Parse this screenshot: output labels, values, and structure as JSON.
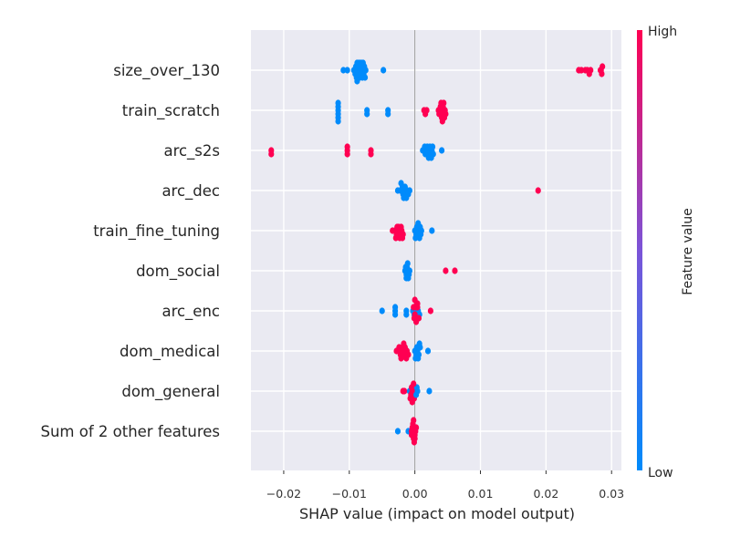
{
  "chart_data": {
    "type": "scatter",
    "subtype": "shap-beeswarm",
    "xlabel": "SHAP value (impact on model output)",
    "xlim": [
      -0.025,
      0.0315
    ],
    "xticks": [
      -0.02,
      -0.01,
      0.0,
      0.01,
      0.02,
      0.03
    ],
    "xtick_labels": [
      "−0.02",
      "−0.01",
      "0.00",
      "0.01",
      "0.02",
      "0.03"
    ],
    "grid": true,
    "colorbar": {
      "label": "Feature value",
      "high_label": "High",
      "low_label": "Low",
      "low_color": "#008bfb",
      "high_color": "#ff0052"
    },
    "features": [
      {
        "name": "size_over_130",
        "points": [
          {
            "x": -0.0093,
            "v": 0
          },
          {
            "x": -0.0092,
            "v": 0
          },
          {
            "x": -0.0091,
            "v": 0
          },
          {
            "x": -0.009,
            "v": 0
          },
          {
            "x": -0.0089,
            "v": 0
          },
          {
            "x": -0.0088,
            "v": 0
          },
          {
            "x": -0.0087,
            "v": 0
          },
          {
            "x": -0.0086,
            "v": 0
          },
          {
            "x": -0.0085,
            "v": 0
          },
          {
            "x": -0.0084,
            "v": 0
          },
          {
            "x": -0.0083,
            "v": 0
          },
          {
            "x": -0.0082,
            "v": 0
          },
          {
            "x": -0.0081,
            "v": 0
          },
          {
            "x": -0.008,
            "v": 0
          },
          {
            "x": -0.0079,
            "v": 0
          },
          {
            "x": -0.0078,
            "v": 0
          },
          {
            "x": -0.0077,
            "v": 0
          },
          {
            "x": -0.0076,
            "v": 0
          },
          {
            "x": -0.0075,
            "v": 0
          },
          {
            "x": -0.0088,
            "v": 0
          },
          {
            "x": -0.0085,
            "v": 0
          },
          {
            "x": -0.0082,
            "v": 0
          },
          {
            "x": -0.0079,
            "v": 0
          },
          {
            "x": -0.0109,
            "v": 0
          },
          {
            "x": -0.0103,
            "v": 0
          },
          {
            "x": -0.0048,
            "v": 0
          },
          {
            "x": 0.025,
            "v": 1
          },
          {
            "x": 0.0254,
            "v": 1
          },
          {
            "x": 0.026,
            "v": 1
          },
          {
            "x": 0.0263,
            "v": 1
          },
          {
            "x": 0.0266,
            "v": 1
          },
          {
            "x": 0.0268,
            "v": 1
          },
          {
            "x": 0.0283,
            "v": 1
          },
          {
            "x": 0.0284,
            "v": 1
          },
          {
            "x": 0.0285,
            "v": 1
          },
          {
            "x": 0.0286,
            "v": 1
          }
        ]
      },
      {
        "name": "train_scratch",
        "points": [
          {
            "x": -0.0117,
            "v": 0
          },
          {
            "x": -0.0117,
            "v": 0
          },
          {
            "x": -0.0117,
            "v": 0
          },
          {
            "x": -0.0117,
            "v": 0
          },
          {
            "x": -0.0117,
            "v": 0
          },
          {
            "x": -0.0117,
            "v": 0
          },
          {
            "x": -0.0073,
            "v": 0
          },
          {
            "x": -0.0073,
            "v": 0
          },
          {
            "x": -0.0041,
            "v": 0
          },
          {
            "x": -0.0041,
            "v": 0
          },
          {
            "x": 0.0014,
            "v": 1
          },
          {
            "x": 0.0016,
            "v": 1
          },
          {
            "x": 0.0018,
            "v": 1
          },
          {
            "x": 0.0036,
            "v": 1
          },
          {
            "x": 0.0038,
            "v": 1
          },
          {
            "x": 0.004,
            "v": 1
          },
          {
            "x": 0.0042,
            "v": 1
          },
          {
            "x": 0.0044,
            "v": 1
          },
          {
            "x": 0.0046,
            "v": 1
          },
          {
            "x": 0.0039,
            "v": 1
          },
          {
            "x": 0.0043,
            "v": 1
          },
          {
            "x": 0.0037,
            "v": 1
          },
          {
            "x": 0.0045,
            "v": 1
          },
          {
            "x": 0.0041,
            "v": 1
          },
          {
            "x": 0.0047,
            "v": 1
          },
          {
            "x": 0.004,
            "v": 1
          },
          {
            "x": 0.0044,
            "v": 1
          },
          {
            "x": 0.0042,
            "v": 1
          }
        ]
      },
      {
        "name": "arc_s2s",
        "points": [
          {
            "x": -0.0219,
            "v": 1
          },
          {
            "x": -0.0219,
            "v": 1
          },
          {
            "x": -0.0103,
            "v": 1
          },
          {
            "x": -0.0103,
            "v": 1
          },
          {
            "x": -0.0103,
            "v": 1
          },
          {
            "x": -0.0067,
            "v": 1
          },
          {
            "x": -0.0067,
            "v": 1
          },
          {
            "x": 0.0012,
            "v": 0
          },
          {
            "x": 0.0014,
            "v": 0
          },
          {
            "x": 0.0016,
            "v": 0
          },
          {
            "x": 0.0018,
            "v": 0
          },
          {
            "x": 0.002,
            "v": 0
          },
          {
            "x": 0.0022,
            "v": 0
          },
          {
            "x": 0.0024,
            "v": 0
          },
          {
            "x": 0.0026,
            "v": 0
          },
          {
            "x": 0.0028,
            "v": 0
          },
          {
            "x": 0.0019,
            "v": 0
          },
          {
            "x": 0.0023,
            "v": 0
          },
          {
            "x": 0.0027,
            "v": 0
          },
          {
            "x": 0.0015,
            "v": 0
          },
          {
            "x": 0.0021,
            "v": 0
          },
          {
            "x": 0.0025,
            "v": 0
          },
          {
            "x": 0.0041,
            "v": 0
          }
        ]
      },
      {
        "name": "arc_dec",
        "points": [
          {
            "x": -0.0026,
            "v": 0
          },
          {
            "x": -0.0022,
            "v": 0
          },
          {
            "x": -0.002,
            "v": 0
          },
          {
            "x": -0.0018,
            "v": 0
          },
          {
            "x": -0.0016,
            "v": 0
          },
          {
            "x": -0.0014,
            "v": 0
          },
          {
            "x": -0.0012,
            "v": 0
          },
          {
            "x": -0.001,
            "v": 0
          },
          {
            "x": -0.0008,
            "v": 0
          },
          {
            "x": -0.0019,
            "v": 0
          },
          {
            "x": -0.0017,
            "v": 0
          },
          {
            "x": -0.0015,
            "v": 0
          },
          {
            "x": -0.0021,
            "v": 0
          },
          {
            "x": -0.0013,
            "v": 0
          },
          {
            "x": 0.0188,
            "v": 1
          }
        ]
      },
      {
        "name": "train_fine_tuning",
        "points": [
          {
            "x": -0.0034,
            "v": 1
          },
          {
            "x": -0.003,
            "v": 1
          },
          {
            "x": -0.0026,
            "v": 1
          },
          {
            "x": -0.0024,
            "v": 1
          },
          {
            "x": -0.0022,
            "v": 1
          },
          {
            "x": -0.002,
            "v": 1
          },
          {
            "x": -0.0018,
            "v": 1
          },
          {
            "x": -0.0028,
            "v": 1
          },
          {
            "x": -0.0025,
            "v": 1
          },
          {
            "x": -0.0021,
            "v": 1
          },
          {
            "x": -0.0027,
            "v": 1
          },
          {
            "x": -0.0023,
            "v": 1
          },
          {
            "x": -0.0019,
            "v": 1
          },
          {
            "x": -0.0029,
            "v": 1
          },
          {
            "x": 0.0,
            "v": 0
          },
          {
            "x": 0.0002,
            "v": 0
          },
          {
            "x": 0.0004,
            "v": 0
          },
          {
            "x": 0.0006,
            "v": 0
          },
          {
            "x": 0.0008,
            "v": 0
          },
          {
            "x": 0.001,
            "v": 0
          },
          {
            "x": 0.0003,
            "v": 0
          },
          {
            "x": 0.0007,
            "v": 0
          },
          {
            "x": 0.0005,
            "v": 0
          },
          {
            "x": 0.0009,
            "v": 0
          },
          {
            "x": 0.0001,
            "v": 0
          },
          {
            "x": 0.0026,
            "v": 0
          }
        ]
      },
      {
        "name": "dom_social",
        "points": [
          {
            "x": -0.0015,
            "v": 0
          },
          {
            "x": -0.0013,
            "v": 0
          },
          {
            "x": -0.0011,
            "v": 0
          },
          {
            "x": -0.0009,
            "v": 0
          },
          {
            "x": -0.0012,
            "v": 0
          },
          {
            "x": -0.001,
            "v": 0
          },
          {
            "x": -0.0014,
            "v": 0
          },
          {
            "x": -0.0008,
            "v": 0
          },
          {
            "x": -0.0011,
            "v": 0
          },
          {
            "x": -0.0013,
            "v": 0
          },
          {
            "x": 0.0047,
            "v": 1
          },
          {
            "x": 0.0061,
            "v": 1
          }
        ]
      },
      {
        "name": "arc_enc",
        "points": [
          {
            "x": -0.005,
            "v": 0
          },
          {
            "x": -0.003,
            "v": 0
          },
          {
            "x": -0.003,
            "v": 0
          },
          {
            "x": -0.003,
            "v": 0
          },
          {
            "x": -0.0013,
            "v": 0
          },
          {
            "x": -0.0013,
            "v": 0
          },
          {
            "x": -0.0003,
            "v": 0
          },
          {
            "x": -0.0001,
            "v": 0
          },
          {
            "x": 0.0003,
            "v": 0
          },
          {
            "x": 0.0005,
            "v": 0
          },
          {
            "x": 0.0007,
            "v": 0
          },
          {
            "x": -0.0002,
            "v": 1
          },
          {
            "x": 0.0,
            "v": 1
          },
          {
            "x": 0.0002,
            "v": 1
          },
          {
            "x": 0.0004,
            "v": 1
          },
          {
            "x": 0.0001,
            "v": 1
          },
          {
            "x": 0.0003,
            "v": 1
          },
          {
            "x": -0.0001,
            "v": 1
          },
          {
            "x": 0.0006,
            "v": 1
          },
          {
            "x": 0.0002,
            "v": 1
          },
          {
            "x": 0.0004,
            "v": 1
          },
          {
            "x": 0.0,
            "v": 1
          },
          {
            "x": 0.0024,
            "v": 1
          }
        ]
      },
      {
        "name": "dom_medical",
        "points": [
          {
            "x": -0.0028,
            "v": 1
          },
          {
            "x": -0.0025,
            "v": 1
          },
          {
            "x": -0.0022,
            "v": 1
          },
          {
            "x": -0.002,
            "v": 1
          },
          {
            "x": -0.0018,
            "v": 1
          },
          {
            "x": -0.0016,
            "v": 1
          },
          {
            "x": -0.0014,
            "v": 1
          },
          {
            "x": -0.0012,
            "v": 1
          },
          {
            "x": -0.001,
            "v": 1
          },
          {
            "x": -0.0024,
            "v": 1
          },
          {
            "x": -0.0019,
            "v": 1
          },
          {
            "x": -0.0015,
            "v": 1
          },
          {
            "x": -0.0021,
            "v": 1
          },
          {
            "x": -0.0017,
            "v": 1
          },
          {
            "x": -0.0013,
            "v": 1
          },
          {
            "x": 0.0,
            "v": 0
          },
          {
            "x": 0.0002,
            "v": 0
          },
          {
            "x": 0.0004,
            "v": 0
          },
          {
            "x": 0.0006,
            "v": 0
          },
          {
            "x": 0.0008,
            "v": 0
          },
          {
            "x": 0.0003,
            "v": 0
          },
          {
            "x": 0.0005,
            "v": 0
          },
          {
            "x": 0.0001,
            "v": 0
          },
          {
            "x": 0.0007,
            "v": 0
          },
          {
            "x": 0.002,
            "v": 0
          }
        ]
      },
      {
        "name": "dom_general",
        "points": [
          {
            "x": -0.0018,
            "v": 1
          },
          {
            "x": -0.0016,
            "v": 1
          },
          {
            "x": -0.0008,
            "v": 0
          },
          {
            "x": -0.0006,
            "v": 1
          },
          {
            "x": -0.0004,
            "v": 1
          },
          {
            "x": -0.0002,
            "v": 1
          },
          {
            "x": 0.0,
            "v": 1
          },
          {
            "x": -0.0005,
            "v": 1
          },
          {
            "x": -0.0003,
            "v": 1
          },
          {
            "x": -0.0001,
            "v": 1
          },
          {
            "x": -0.0007,
            "v": 1
          },
          {
            "x": 0.0002,
            "v": 0
          },
          {
            "x": 0.0004,
            "v": 0
          },
          {
            "x": 0.0003,
            "v": 0
          },
          {
            "x": -0.0002,
            "v": 1
          },
          {
            "x": -0.0004,
            "v": 1
          },
          {
            "x": 0.0022,
            "v": 0
          }
        ]
      },
      {
        "name": "Sum of 2 other features",
        "points": [
          {
            "x": -0.0026,
            "v": 0
          },
          {
            "x": -0.001,
            "v": 0
          },
          {
            "x": -0.0005,
            "v": 1
          },
          {
            "x": -0.0003,
            "v": 1
          },
          {
            "x": -0.0001,
            "v": 1
          },
          {
            "x": 0.0001,
            "v": 1
          },
          {
            "x": -0.0004,
            "v": 1
          },
          {
            "x": -0.0002,
            "v": 1
          },
          {
            "x": 0.0,
            "v": 1
          },
          {
            "x": -0.0003,
            "v": 1
          },
          {
            "x": -0.0001,
            "v": 1
          },
          {
            "x": 0.0002,
            "v": 1
          },
          {
            "x": -0.0005,
            "v": 1
          },
          {
            "x": -0.0002,
            "v": 1
          },
          {
            "x": 0.0,
            "v": 1
          }
        ]
      }
    ]
  }
}
